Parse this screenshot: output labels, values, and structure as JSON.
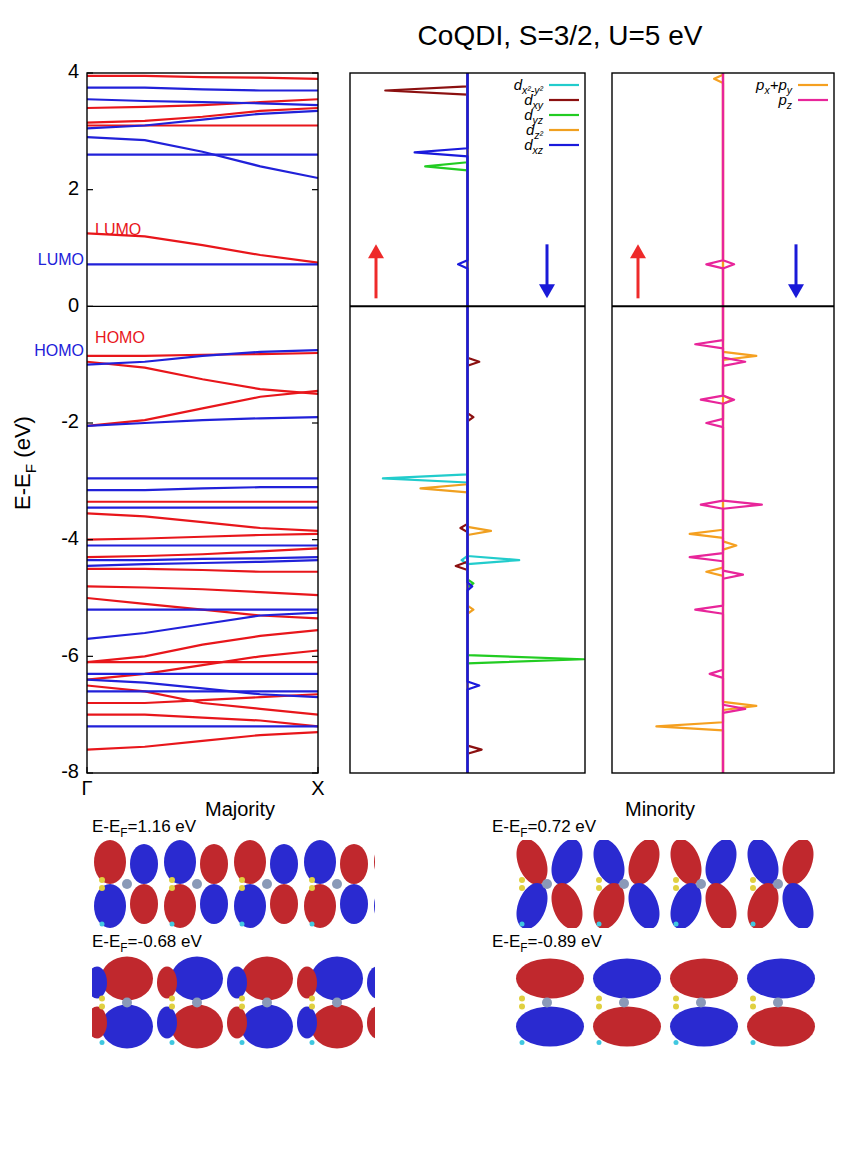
{
  "title": "CoQDI, S=3/2, U=5 eV",
  "chart_data": [
    {
      "type": "line",
      "ylabel": "E-EF (eV)",
      "x": [
        0,
        0.25,
        0.5,
        0.75,
        1
      ],
      "xlim": [
        0,
        1
      ],
      "xticks": [
        {
          "value": 0,
          "label": "Γ"
        },
        {
          "value": 1,
          "label": "X"
        }
      ],
      "ylim": [
        -8,
        4
      ],
      "yticks": [
        -8,
        -6,
        -4,
        -2,
        0,
        2,
        4
      ],
      "hline": 0,
      "annotations": [
        {
          "text": "LUMO",
          "color": "#e8161b",
          "x": 0.035,
          "y": 1.3
        },
        {
          "text": "HOMO",
          "color": "#e8161b",
          "x": 0.035,
          "y": -0.55
        }
      ],
      "side_labels": [
        {
          "text": "LUMO",
          "color": "#2121d9",
          "y": 0.78
        },
        {
          "text": "HOMO",
          "color": "#2121d9",
          "y": -0.78
        }
      ],
      "series": [
        {
          "color": "#e8161b",
          "values": [
            3.95,
            3.95,
            3.93,
            3.92,
            3.9
          ]
        },
        {
          "color": "#e8161b",
          "values": [
            3.4,
            3.42,
            3.45,
            3.5,
            3.55
          ]
        },
        {
          "color": "#e8161b",
          "values": [
            3.15,
            3.18,
            3.25,
            3.35,
            3.4
          ]
        },
        {
          "color": "#e8161b",
          "values": [
            3.1,
            3.1,
            3.1,
            3.1,
            3.1
          ]
        },
        {
          "color": "#e8161b",
          "values": [
            1.25,
            1.2,
            1.05,
            0.88,
            0.75
          ]
        },
        {
          "color": "#e8161b",
          "values": [
            -0.85,
            -0.85,
            -0.83,
            -0.82,
            -0.8
          ]
        },
        {
          "color": "#e8161b",
          "values": [
            -0.95,
            -1.05,
            -1.25,
            -1.42,
            -1.5
          ]
        },
        {
          "color": "#e8161b",
          "values": [
            -2.05,
            -1.95,
            -1.75,
            -1.55,
            -1.45
          ]
        },
        {
          "color": "#e8161b",
          "values": [
            -3.35,
            -3.35,
            -3.35,
            -3.35,
            -3.35
          ]
        },
        {
          "color": "#e8161b",
          "values": [
            -3.55,
            -3.6,
            -3.7,
            -3.8,
            -3.85
          ]
        },
        {
          "color": "#e8161b",
          "values": [
            -4.0,
            -3.98,
            -3.95,
            -3.92,
            -3.9
          ]
        },
        {
          "color": "#e8161b",
          "values": [
            -4.3,
            -4.28,
            -4.25,
            -4.2,
            -4.15
          ]
        },
        {
          "color": "#e8161b",
          "values": [
            -4.5,
            -4.5,
            -4.52,
            -4.55,
            -4.55
          ]
        },
        {
          "color": "#e8161b",
          "values": [
            -4.8,
            -4.82,
            -4.85,
            -4.9,
            -4.95
          ]
        },
        {
          "color": "#e8161b",
          "values": [
            -5.0,
            -5.1,
            -5.2,
            -5.3,
            -5.35
          ]
        },
        {
          "color": "#e8161b",
          "values": [
            -6.1,
            -6.0,
            -5.8,
            -5.65,
            -5.55
          ]
        },
        {
          "color": "#e8161b",
          "values": [
            -6.1,
            -6.1,
            -6.1,
            -6.1,
            -6.1
          ]
        },
        {
          "color": "#e8161b",
          "values": [
            -6.4,
            -6.3,
            -6.15,
            -6.0,
            -5.9
          ]
        },
        {
          "color": "#e8161b",
          "values": [
            -6.5,
            -6.6,
            -6.8,
            -6.9,
            -7.0
          ]
        },
        {
          "color": "#e8161b",
          "values": [
            -6.8,
            -6.8,
            -6.75,
            -6.7,
            -6.65
          ]
        },
        {
          "color": "#e8161b",
          "values": [
            -7.0,
            -7.0,
            -7.05,
            -7.1,
            -7.2
          ]
        },
        {
          "color": "#e8161b",
          "values": [
            -7.6,
            -7.55,
            -7.45,
            -7.35,
            -7.3
          ]
        },
        {
          "color": "#2121d9",
          "values": [
            3.75,
            3.75,
            3.72,
            3.7,
            3.7
          ]
        },
        {
          "color": "#2121d9",
          "values": [
            3.55,
            3.52,
            3.5,
            3.48,
            3.45
          ]
        },
        {
          "color": "#2121d9",
          "values": [
            3.05,
            3.1,
            3.2,
            3.3,
            3.35
          ]
        },
        {
          "color": "#2121d9",
          "values": [
            2.9,
            2.85,
            2.65,
            2.4,
            2.2
          ]
        },
        {
          "color": "#2121d9",
          "values": [
            2.6,
            2.6,
            2.6,
            2.6,
            2.6
          ]
        },
        {
          "color": "#2121d9",
          "values": [
            0.72,
            0.72,
            0.72,
            0.72,
            0.72
          ]
        },
        {
          "color": "#2121d9",
          "values": [
            -1.0,
            -0.95,
            -0.85,
            -0.78,
            -0.75
          ]
        },
        {
          "color": "#2121d9",
          "values": [
            -2.05,
            -2.0,
            -1.95,
            -1.92,
            -1.9
          ]
        },
        {
          "color": "#2121d9",
          "values": [
            -2.95,
            -2.95,
            -2.95,
            -2.95,
            -2.95
          ]
        },
        {
          "color": "#2121d9",
          "values": [
            -3.15,
            -3.15,
            -3.12,
            -3.1,
            -3.1
          ]
        },
        {
          "color": "#2121d9",
          "values": [
            -3.45,
            -3.45,
            -3.45,
            -3.45,
            -3.45
          ]
        },
        {
          "color": "#2121d9",
          "values": [
            -4.1,
            -4.1,
            -4.1,
            -4.1,
            -4.1
          ]
        },
        {
          "color": "#2121d9",
          "values": [
            -4.35,
            -4.35,
            -4.33,
            -4.32,
            -4.3
          ]
        },
        {
          "color": "#2121d9",
          "values": [
            -4.45,
            -4.42,
            -4.4,
            -4.38,
            -4.35
          ]
        },
        {
          "color": "#2121d9",
          "values": [
            -5.2,
            -5.2,
            -5.2,
            -5.2,
            -5.2
          ]
        },
        {
          "color": "#2121d9",
          "values": [
            -5.7,
            -5.6,
            -5.45,
            -5.3,
            -5.25
          ]
        },
        {
          "color": "#2121d9",
          "values": [
            -6.3,
            -6.3,
            -6.3,
            -6.3,
            -6.3
          ]
        },
        {
          "color": "#2121d9",
          "values": [
            -6.4,
            -6.45,
            -6.55,
            -6.65,
            -6.7
          ]
        },
        {
          "color": "#2121d9",
          "values": [
            -6.6,
            -6.6,
            -6.6,
            -6.6,
            -6.6
          ]
        },
        {
          "color": "#2121d9",
          "values": [
            -7.2,
            -7.2,
            -7.2,
            -7.2,
            -7.2
          ]
        }
      ]
    },
    {
      "type": "line",
      "orientation": "horizontal",
      "xlim": [
        -1,
        1
      ],
      "ylim": [
        -8,
        4
      ],
      "hline": 0,
      "tick_labels": false,
      "legend": "upper right",
      "series": [
        {
          "name": "dx²-y²",
          "color": "#22cccc",
          "energy": [
            -8,
            -4.42,
            -4.35,
            -4.28,
            -3.02,
            -2.95,
            -2.88,
            4
          ],
          "up": [
            0,
            0,
            0.05,
            0,
            0,
            0.72,
            0,
            0
          ],
          "down": [
            0,
            0,
            0.44,
            0,
            0,
            0,
            0,
            0
          ]
        },
        {
          "name": "dxy",
          "color": "#8b1010",
          "energy": [
            -8,
            -7.67,
            -7.6,
            -7.53,
            -4.52,
            -4.45,
            -4.38,
            -3.87,
            -3.8,
            -3.73,
            -1.97,
            -1.9,
            -1.83,
            -1.02,
            -0.95,
            -0.88,
            3.63,
            3.7,
            3.77,
            4
          ],
          "up": [
            0,
            0,
            0,
            0,
            0,
            0.1,
            0,
            0,
            0.06,
            0,
            0,
            0,
            0,
            0,
            0,
            0,
            0,
            0.7,
            0,
            0
          ],
          "down": [
            0,
            0,
            0.12,
            0,
            0,
            0,
            0,
            0,
            0,
            0,
            0,
            0.05,
            0,
            0,
            0.1,
            0,
            0,
            0,
            0,
            0
          ]
        },
        {
          "name": "dyz",
          "color": "#22cc22",
          "energy": [
            -8,
            -6.12,
            -6.05,
            -5.98,
            -4.82,
            -4.75,
            -4.68,
            2.33,
            2.4,
            2.47,
            4
          ],
          "up": [
            0,
            0,
            0,
            0,
            0,
            0,
            0,
            0,
            0.36,
            0,
            0
          ],
          "down": [
            0,
            0,
            0.99,
            0,
            0,
            0.05,
            0,
            0,
            0,
            0,
            0
          ]
        },
        {
          "name": "dz²",
          "color": "#f0a020",
          "energy": [
            -8,
            -5.27,
            -5.2,
            -5.13,
            -3.92,
            -3.85,
            -3.78,
            -3.19,
            -3.12,
            -3.05,
            4
          ],
          "up": [
            0,
            0,
            0,
            0,
            0,
            0,
            0,
            0,
            0.4,
            0,
            0
          ],
          "down": [
            0,
            0,
            0.05,
            0,
            0,
            0.2,
            0,
            0,
            0,
            0,
            0
          ]
        },
        {
          "name": "dxz",
          "color": "#1a1adc",
          "energy": [
            -8,
            -6.57,
            -6.5,
            -6.43,
            -4.87,
            -4.8,
            -4.73,
            0.65,
            0.72,
            0.79,
            2.57,
            2.64,
            2.71,
            4
          ],
          "up": [
            0,
            0,
            0,
            0,
            0,
            0,
            0,
            0,
            0.08,
            0,
            0,
            0.45,
            0,
            0
          ],
          "down": [
            0,
            0,
            0.1,
            0,
            0,
            0.04,
            0,
            0,
            0,
            0,
            0,
            0,
            0,
            0
          ]
        }
      ]
    },
    {
      "type": "line",
      "orientation": "horizontal",
      "xlim": [
        -1,
        1
      ],
      "ylim": [
        -8,
        4
      ],
      "hline": 0,
      "tick_labels": false,
      "legend": "upper right",
      "series": [
        {
          "name": "px+py",
          "color": "#f5a020",
          "energy": [
            -8,
            -7.27,
            -7.2,
            -7.13,
            -6.92,
            -6.85,
            -6.78,
            -4.62,
            -4.55,
            -4.48,
            -4.17,
            -4.1,
            -4.03,
            -3.97,
            -3.9,
            -3.83,
            -1.67,
            -1.6,
            -1.53,
            -0.92,
            -0.85,
            -0.78,
            3.83,
            3.9,
            3.97,
            4
          ],
          "up": [
            0,
            0,
            0.6,
            0,
            0,
            0,
            0,
            0,
            0.15,
            0,
            0,
            0,
            0,
            0,
            0.3,
            0,
            0,
            0,
            0,
            0,
            0,
            0,
            0,
            0.08,
            0,
            0
          ],
          "down": [
            0,
            0,
            0,
            0,
            0,
            0.3,
            0,
            0,
            0,
            0,
            0,
            0.12,
            0,
            0,
            0,
            0,
            0,
            0.08,
            0,
            0,
            0.3,
            0,
            0,
            0,
            0,
            0
          ]
        },
        {
          "name": "pz",
          "color": "#e8259a",
          "energy": [
            -8,
            -6.97,
            -6.9,
            -6.83,
            -6.37,
            -6.3,
            -6.23,
            -5.27,
            -5.2,
            -5.13,
            -4.67,
            -4.6,
            -4.53,
            -4.37,
            -4.3,
            -4.23,
            -3.47,
            -3.4,
            -3.33,
            -2.07,
            -2,
            -1.93,
            -1.67,
            -1.6,
            -1.53,
            -1.02,
            -0.95,
            -0.88,
            -0.72,
            -0.65,
            -0.58,
            0.65,
            0.72,
            0.79,
            4
          ],
          "up": [
            0,
            0,
            0,
            0,
            0,
            0.12,
            0,
            0,
            0.25,
            0,
            0,
            0,
            0,
            0,
            0.3,
            0,
            0,
            0.2,
            0,
            0,
            0.15,
            0,
            0,
            0.2,
            0,
            0,
            0,
            0,
            0,
            0.25,
            0,
            0,
            0.15,
            0,
            0
          ],
          "down": [
            0,
            0,
            0.2,
            0,
            0,
            0,
            0,
            0,
            0,
            0,
            0,
            0.18,
            0,
            0,
            0,
            0,
            0,
            0.35,
            0,
            0,
            0,
            0,
            0,
            0.1,
            0,
            0,
            0.2,
            0,
            0,
            0,
            0,
            0,
            0.1,
            0,
            0
          ]
        }
      ]
    }
  ],
  "orbitals": {
    "panels": [
      {
        "title": "Majority",
        "images": [
          {
            "label": "E-EF=1.16 eV"
          },
          {
            "label": "E-EF=-0.68 eV"
          }
        ]
      },
      {
        "title": "Minority",
        "images": [
          {
            "label": "E-EF=0.72 eV"
          },
          {
            "label": "E-EF=-0.89 eV"
          }
        ]
      }
    ]
  }
}
